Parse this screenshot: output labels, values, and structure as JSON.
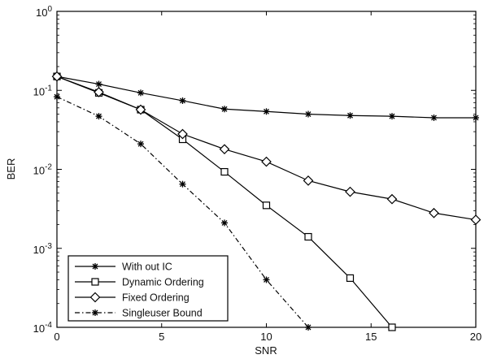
{
  "chart_data": {
    "type": "line",
    "xlabel": "SNR",
    "ylabel": "BER",
    "xlim": [
      0,
      20
    ],
    "ylim": [
      0.0001,
      1
    ],
    "yscale": "log",
    "xticks": [
      0,
      5,
      10,
      15,
      20
    ],
    "xtick_labels": [
      "0",
      "5",
      "10",
      "15",
      "20"
    ],
    "yticks": [
      0.0001,
      0.001,
      0.01,
      0.1,
      1
    ],
    "ytick_labels": [
      {
        "base": "10",
        "exp": "-4"
      },
      {
        "base": "10",
        "exp": "-3"
      },
      {
        "base": "10",
        "exp": "-2"
      },
      {
        "base": "10",
        "exp": "-1"
      },
      {
        "base": "10",
        "exp": "0"
      }
    ],
    "grid": false,
    "legend_position": "bottom-left",
    "series": [
      {
        "name": "With out IC",
        "marker": "star",
        "line": "solid",
        "color": "#000000",
        "x": [
          0,
          2,
          4,
          6,
          8,
          10,
          12,
          14,
          16,
          18,
          20
        ],
        "y": [
          0.15,
          0.12,
          0.093,
          0.074,
          0.058,
          0.054,
          0.05,
          0.048,
          0.047,
          0.045,
          0.045
        ]
      },
      {
        "name": "Dynamic Ordering",
        "marker": "square",
        "line": "solid",
        "color": "#000000",
        "x": [
          0,
          2,
          4,
          6,
          8,
          10,
          12,
          14,
          16
        ],
        "y": [
          0.15,
          0.093,
          0.057,
          0.024,
          0.0093,
          0.0035,
          0.0014,
          0.00042,
          0.0001
        ]
      },
      {
        "name": "Fixed Ordering",
        "marker": "diamond",
        "line": "solid",
        "color": "#000000",
        "x": [
          0,
          2,
          4,
          6,
          8,
          10,
          12,
          14,
          16,
          18,
          20
        ],
        "y": [
          0.15,
          0.095,
          0.057,
          0.028,
          0.018,
          0.0125,
          0.0072,
          0.0052,
          0.0042,
          0.0028,
          0.0023
        ]
      },
      {
        "name": "Singleuser Bound",
        "marker": "star",
        "line": "dashdot",
        "color": "#000000",
        "x": [
          0,
          2,
          4,
          6,
          8,
          10,
          12
        ],
        "y": [
          0.083,
          0.047,
          0.021,
          0.0065,
          0.0021,
          0.0004,
          0.0001
        ]
      }
    ]
  }
}
